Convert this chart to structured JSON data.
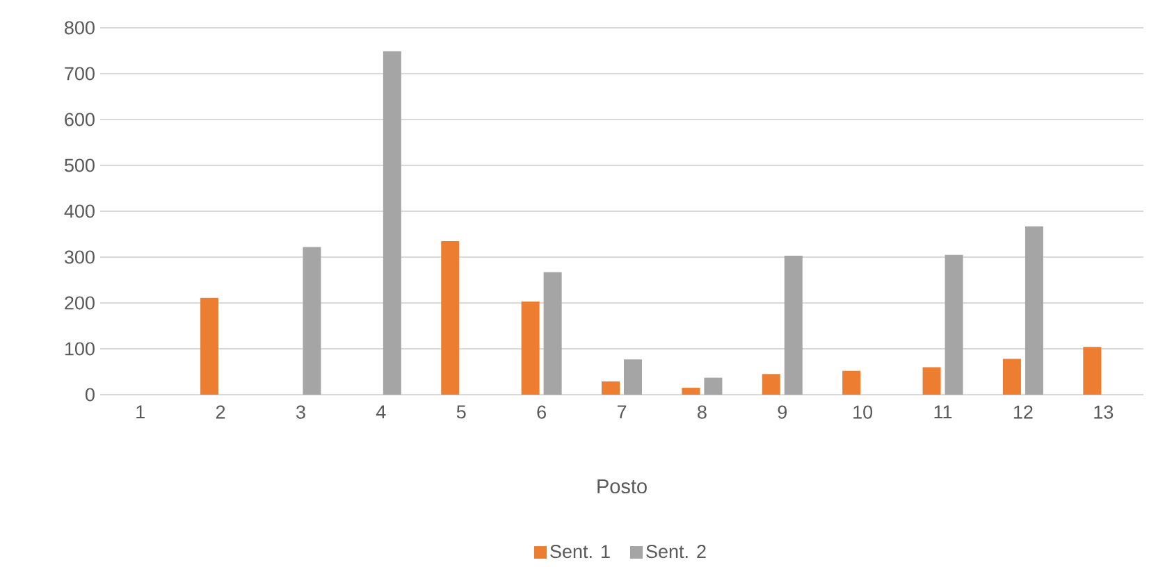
{
  "chart_data": {
    "type": "bar",
    "xlabel": "Posto",
    "categories": [
      "1",
      "2",
      "3",
      "4",
      "5",
      "6",
      "7",
      "8",
      "9",
      "10",
      "11",
      "12",
      "13"
    ],
    "series": [
      {
        "name": "Sent. 1",
        "color": "#ed7d31",
        "values": [
          null,
          211,
          null,
          null,
          335,
          203,
          29,
          15,
          45,
          52,
          60,
          78,
          104
        ]
      },
      {
        "name": "Sent. 2",
        "color": "#a5a5a5",
        "values": [
          null,
          null,
          322,
          749,
          null,
          267,
          77,
          37,
          303,
          null,
          305,
          367,
          null
        ]
      }
    ],
    "ylim": [
      0,
      800
    ],
    "yticks": [
      0,
      100,
      200,
      300,
      400,
      500,
      600,
      700,
      800
    ],
    "grid": "y",
    "legend": "bottom"
  }
}
